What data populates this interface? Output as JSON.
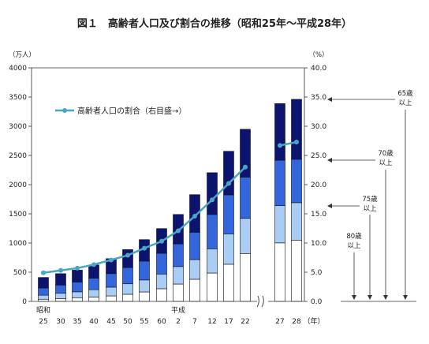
{
  "chart_data": {
    "type": "bar",
    "title": "図１　高齢者人口及び割合の推移（昭和25年～平成28年）",
    "left_axis": {
      "unit": "（万人）",
      "ylim": [
        0,
        4000
      ],
      "ticks": [
        "0",
        "500",
        "1000",
        "1500",
        "2000",
        "2500",
        "3000",
        "3500",
        "4000"
      ]
    },
    "right_axis": {
      "unit": "（%）",
      "ylim": [
        0,
        40
      ],
      "ticks": [
        "0.0",
        "5.0",
        "10.0",
        "15.0",
        "20.0",
        "25.0",
        "30.0",
        "35.0",
        "40.0"
      ]
    },
    "era_labels": {
      "showa": "昭和",
      "heisei": "平成",
      "year_suffix": "（年）"
    },
    "categories": [
      "25",
      "30",
      "35",
      "40",
      "45",
      "50",
      "55",
      "60",
      "2",
      "7",
      "12",
      "17",
      "22",
      "27",
      "28"
    ],
    "series": [
      {
        "name": "80歳以上",
        "color": "#ffffff",
        "values": [
          37,
          46,
          58,
          75,
          94,
          122,
          162,
          217,
          297,
          379,
          486,
          636,
          820,
          1002,
          1045
        ]
      },
      {
        "name": "75歳以上",
        "color": "#a9cdf4",
        "values": [
          69,
          93,
          106,
          125,
          150,
          179,
          205,
          252,
          300,
          338,
          415,
          521,
          602,
          639,
          646
        ]
      },
      {
        "name": "70歳以上",
        "color": "#3366dd",
        "values": [
          124,
          141,
          166,
          196,
          232,
          279,
          323,
          355,
          387,
          467,
          588,
          668,
          706,
          777,
          743
        ]
      },
      {
        "name": "65歳以上",
        "color": "#0d1470",
        "values": [
          180,
          195,
          205,
          227,
          256,
          307,
          368,
          423,
          505,
          644,
          715,
          746,
          820,
          970,
          1027
        ]
      }
    ],
    "line": {
      "name": "高齢者人口の割合（右目盛→）",
      "color": "#4aa5c6",
      "segments": [
        {
          "categories": [
            "25",
            "30",
            "35",
            "40",
            "45",
            "50",
            "55",
            "60",
            "2",
            "7",
            "12",
            "17",
            "22"
          ],
          "values": [
            4.9,
            5.3,
            5.7,
            6.3,
            7.1,
            7.9,
            9.1,
            10.3,
            12.1,
            14.6,
            17.4,
            20.2,
            23.0
          ]
        },
        {
          "categories": [
            "27",
            "28"
          ],
          "values": [
            26.7,
            27.3
          ]
        }
      ]
    },
    "annotations": {
      "age65": [
        "65歳",
        "以上"
      ],
      "age70": [
        "70歳",
        "以上"
      ],
      "age75": [
        "75歳",
        "以上"
      ],
      "age80": [
        "80歳",
        "以上"
      ]
    },
    "grid": false,
    "legend": "top-left"
  }
}
